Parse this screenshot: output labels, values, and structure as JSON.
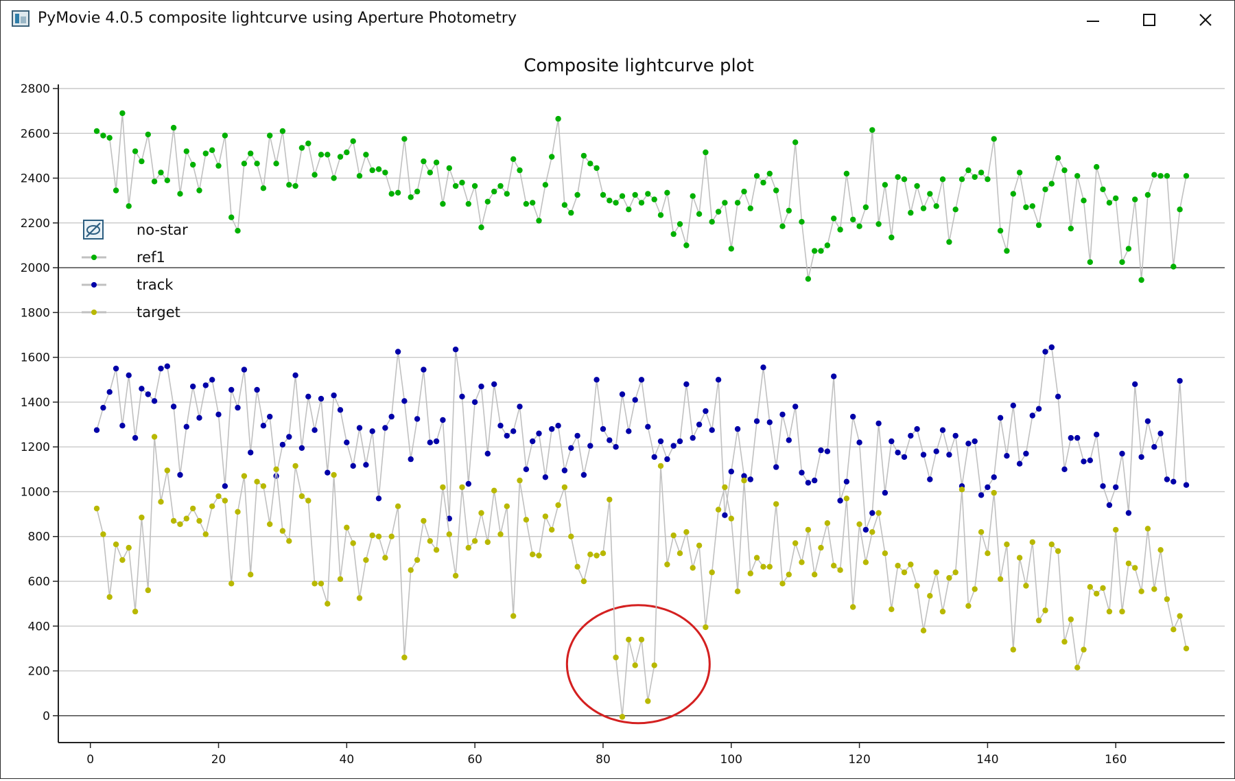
{
  "window": {
    "title": "PyMovie 4.0.5 composite lightcurve using Aperture Photometry"
  },
  "chart_data": {
    "type": "line",
    "title": "Composite lightcurve plot",
    "xlabel": "",
    "ylabel": "",
    "xlim": [
      -5,
      177
    ],
    "ylim": [
      -120,
      2800
    ],
    "x_ticks": [
      0,
      20,
      40,
      60,
      80,
      100,
      120,
      140,
      160
    ],
    "y_ticks": [
      0,
      200,
      400,
      600,
      800,
      1000,
      1200,
      1400,
      1600,
      1800,
      2000,
      2200,
      2400,
      2600,
      2800
    ],
    "grid": "horizontal",
    "legend_position": "left",
    "legend": [
      {
        "name": "no-star",
        "icon": "hidden-eye-icon"
      },
      {
        "name": "ref1",
        "color": "#00b000"
      },
      {
        "name": "track",
        "color": "#0000a8"
      },
      {
        "name": "target",
        "color": "#b8b800"
      }
    ],
    "line_color": "#c0c0c0",
    "series": [
      {
        "name": "ref1",
        "color": "#00b000",
        "x_start": 1,
        "values": [
          2610,
          2590,
          2580,
          2345,
          2690,
          2275,
          2520,
          2475,
          2595,
          2385,
          2425,
          2390,
          2625,
          2330,
          2520,
          2460,
          2345,
          2510,
          2525,
          2455,
          2590,
          2225,
          2165,
          2465,
          2510,
          2465,
          2355,
          2590,
          2465,
          2610,
          2370,
          2365,
          2535,
          2555,
          2415,
          2505,
          2505,
          2400,
          2495,
          2515,
          2565,
          2410,
          2505,
          2435,
          2440,
          2425,
          2330,
          2335,
          2575,
          2315,
          2340,
          2475,
          2425,
          2470,
          2285,
          2445,
          2365,
          2380,
          2285,
          2365,
          2180,
          2295,
          2340,
          2365,
          2330,
          2485,
          2435,
          2285,
          2290,
          2210,
          2370,
          2495,
          2665,
          2280,
          2245,
          2325,
          2500,
          2465,
          2445,
          2325,
          2300,
          2290,
          2320,
          2260,
          2325,
          2290,
          2330,
          2305,
          2235,
          2335,
          2150,
          2195,
          2100,
          2320,
          2240,
          2515,
          2205,
          2250,
          2290,
          2085,
          2290,
          2340,
          2265,
          2410,
          2380,
          2420,
          2345,
          2185,
          2255,
          2560,
          2205,
          1950,
          2075,
          2075,
          2100,
          2220,
          2170,
          2420,
          2215,
          2185,
          2270,
          2615,
          2195,
          2370,
          2135,
          2405,
          2395,
          2245,
          2365,
          2265,
          2330,
          2275,
          2395,
          2115,
          2260,
          2395,
          2435,
          2405,
          2425,
          2395,
          2575,
          2165,
          2075,
          2330,
          2425,
          2270,
          2275,
          2190,
          2350,
          2375,
          2490,
          2435,
          2175,
          2410,
          2300,
          2025,
          2450,
          2350,
          2290,
          2310,
          2025,
          2085,
          2305,
          1945,
          2325,
          2415,
          2410,
          2410,
          2005,
          2260,
          2410
        ]
      },
      {
        "name": "track",
        "color": "#0000a8",
        "x_start": 1,
        "values": [
          1275,
          1375,
          1445,
          1550,
          1295,
          1520,
          1240,
          1460,
          1435,
          1405,
          1550,
          1560,
          1380,
          1075,
          1290,
          1470,
          1330,
          1475,
          1500,
          1345,
          1025,
          1455,
          1375,
          1545,
          1175,
          1455,
          1295,
          1335,
          1070,
          1210,
          1245,
          1520,
          1195,
          1425,
          1275,
          1415,
          1085,
          1430,
          1365,
          1220,
          1115,
          1285,
          1120,
          1270,
          970,
          1285,
          1335,
          1625,
          1405,
          1145,
          1325,
          1545,
          1220,
          1225,
          1320,
          880,
          1635,
          1425,
          1035,
          1400,
          1470,
          1170,
          1480,
          1295,
          1250,
          1270,
          1380,
          1100,
          1225,
          1260,
          1065,
          1280,
          1295,
          1095,
          1195,
          1250,
          1075,
          1205,
          1500,
          1280,
          1230,
          1200,
          1435,
          1270,
          1410,
          1500,
          1290,
          1155,
          1225,
          1145,
          1205,
          1225,
          1480,
          1240,
          1300,
          1360,
          1275,
          1500,
          895,
          1090,
          1280,
          1070,
          1055,
          1315,
          1555,
          1310,
          1110,
          1345,
          1230,
          1380,
          1085,
          1040,
          1050,
          1185,
          1180,
          1515,
          960,
          1045,
          1335,
          1220,
          830,
          905,
          1305,
          995,
          1225,
          1175,
          1155,
          1250,
          1280,
          1165,
          1055,
          1180,
          1275,
          1165,
          1250,
          1025,
          1215,
          1225,
          985,
          1020,
          1065,
          1330,
          1160,
          1385,
          1125,
          1170,
          1340,
          1370,
          1625,
          1645,
          1425,
          1100,
          1240,
          1240,
          1135,
          1140,
          1255,
          1025,
          940,
          1020,
          1170,
          905,
          1480,
          1155,
          1315,
          1200,
          1260,
          1055,
          1045,
          1495,
          1030
        ]
      },
      {
        "name": "target",
        "color": "#b8b800",
        "x_start": 1,
        "values": [
          925,
          810,
          530,
          765,
          695,
          750,
          465,
          885,
          560,
          1245,
          955,
          1095,
          870,
          855,
          880,
          925,
          870,
          810,
          935,
          980,
          960,
          590,
          910,
          1070,
          630,
          1045,
          1025,
          855,
          1100,
          825,
          780,
          1115,
          980,
          960,
          590,
          590,
          500,
          1075,
          610,
          840,
          770,
          525,
          695,
          805,
          800,
          705,
          800,
          935,
          260,
          650,
          695,
          870,
          780,
          740,
          1020,
          810,
          625,
          1020,
          750,
          780,
          905,
          775,
          1005,
          810,
          935,
          445,
          1050,
          875,
          720,
          715,
          890,
          830,
          940,
          1020,
          800,
          665,
          600,
          720,
          715,
          725,
          965,
          260,
          -5,
          340,
          225,
          340,
          65,
          225,
          1115,
          675,
          805,
          725,
          820,
          660,
          760,
          395,
          640,
          920,
          1020,
          880,
          555,
          1050,
          635,
          705,
          665,
          665,
          945,
          590,
          630,
          770,
          685,
          830,
          630,
          750,
          860,
          670,
          650,
          970,
          485,
          855,
          685,
          820,
          905,
          725,
          475,
          670,
          640,
          675,
          580,
          380,
          535,
          640,
          465,
          615,
          640,
          1010,
          490,
          565,
          820,
          725,
          995,
          610,
          765,
          295,
          705,
          580,
          775,
          425,
          470,
          765,
          735,
          330,
          430,
          215,
          295,
          575,
          545,
          570,
          465,
          830,
          465,
          680,
          660,
          555,
          835,
          565,
          740,
          520,
          385,
          445,
          300
        ]
      }
    ]
  }
}
